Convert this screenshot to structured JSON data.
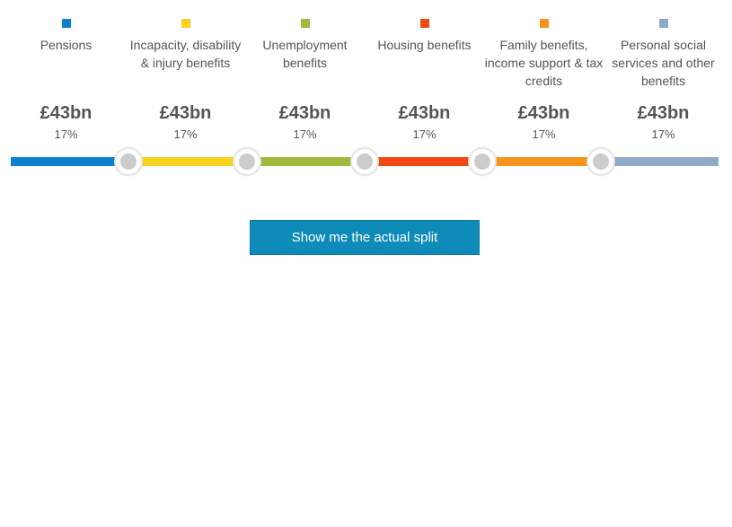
{
  "categories": [
    {
      "label": "Pensions",
      "amount": "£43bn",
      "percent": "17%",
      "color": "#0d7fd0",
      "share": 17
    },
    {
      "label": "Incapacity, disability & injury benefits",
      "amount": "£43bn",
      "percent": "17%",
      "color": "#f7d21e",
      "share": 17
    },
    {
      "label": "Unemployment benefits",
      "amount": "£43bn",
      "percent": "17%",
      "color": "#9fba3b",
      "share": 17
    },
    {
      "label": "Housing benefits",
      "amount": "£43bn",
      "percent": "17%",
      "color": "#f04a12",
      "share": 17
    },
    {
      "label": "Family benefits, income support & tax credits",
      "amount": "£43bn",
      "percent": "17%",
      "color": "#f7941e",
      "share": 17
    },
    {
      "label": "Personal social services and other benefits",
      "amount": "£43bn",
      "percent": "17%",
      "color": "#8eaac4",
      "share": 17
    }
  ],
  "button": {
    "label": "Show me the actual split"
  }
}
